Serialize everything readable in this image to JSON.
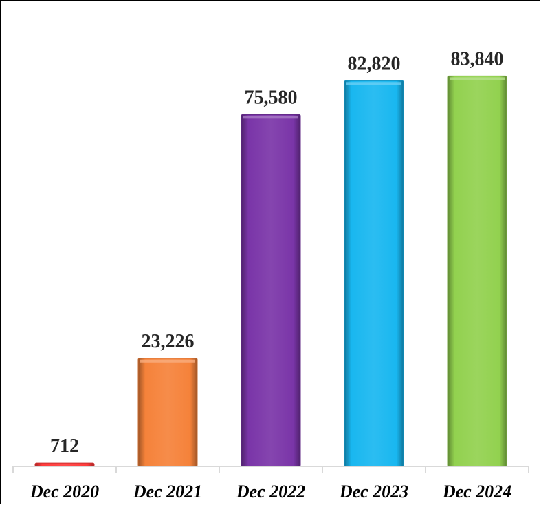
{
  "chart_data": {
    "type": "bar",
    "categories": [
      "Dec 2020",
      "Dec 2021",
      "Dec 2022",
      "Dec 2023",
      "Dec 2024"
    ],
    "values": [
      712,
      23226,
      75580,
      82820,
      83840
    ],
    "data_labels": [
      "712",
      "23,226",
      "75,580",
      "82,820",
      "83,840"
    ],
    "title": "",
    "xlabel": "",
    "ylabel": "",
    "ylim": [
      0,
      100000
    ],
    "grid": false,
    "legend": "none",
    "colors": [
      "#ff3b3b",
      "#f5823a",
      "#7a35a8",
      "#19b7f0",
      "#92d14f"
    ]
  }
}
